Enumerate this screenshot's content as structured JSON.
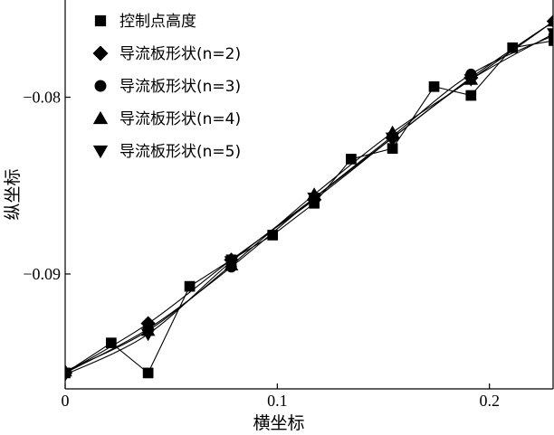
{
  "chart_data": {
    "type": "line",
    "title": "",
    "xlabel": "横坐标",
    "ylabel": "纵坐标",
    "xlim": [
      0,
      0.23
    ],
    "ylim": [
      -0.0965,
      -0.0745
    ],
    "x_ticks": [
      0,
      0.1,
      0.2
    ],
    "x_tick_labels": [
      "0",
      "0.1",
      "0.2"
    ],
    "y_ticks": [
      -0.09,
      -0.08
    ],
    "y_tick_labels": [
      "−0.09",
      "−0.08"
    ],
    "grid": false,
    "legend_position": "top-left",
    "series": [
      {
        "name": "控制点高度",
        "marker": "square",
        "x": [
          0,
          0.0217,
          0.0391,
          0.0587,
          0.0783,
          0.0978,
          0.1174,
          0.1348,
          0.1543,
          0.1739,
          0.1913,
          0.2109,
          0.2304
        ],
        "y": [
          -0.0956,
          -0.0939,
          -0.0956,
          -0.0907,
          -0.0892,
          -0.0878,
          -0.086,
          -0.0835,
          -0.0829,
          -0.0794,
          -0.0799,
          -0.0772,
          -0.0768
        ]
      },
      {
        "name": "导流板形状(n=2)",
        "marker": "diamond",
        "x": [
          0,
          0.0391,
          0.0783,
          0.1174,
          0.1543,
          0.1913,
          0.2304
        ],
        "y": [
          -0.0956,
          -0.0928,
          -0.0892,
          -0.0858,
          -0.0823,
          -0.0789,
          -0.0757
        ]
      },
      {
        "name": "导流板形状(n=3)",
        "marker": "circle",
        "x": [
          0,
          0.0391,
          0.0783,
          0.1174,
          0.1543,
          0.1913,
          0.2304
        ],
        "y": [
          -0.0956,
          -0.0931,
          -0.0896,
          -0.0857,
          -0.0822,
          -0.0787,
          -0.0765
        ]
      },
      {
        "name": "导流板形状(n=4)",
        "marker": "triangle-up",
        "x": [
          0,
          0.0391,
          0.0783,
          0.1174,
          0.1543,
          0.1913,
          0.2304
        ],
        "y": [
          -0.0955,
          -0.0932,
          -0.0895,
          -0.0855,
          -0.082,
          -0.079,
          -0.0757
        ]
      },
      {
        "name": "导流板形状(n=5)",
        "marker": "triangle-down",
        "x": [
          0,
          0.0391,
          0.0783,
          0.1174,
          0.1543,
          0.1913,
          0.2304
        ],
        "y": [
          -0.0957,
          -0.0934,
          -0.0893,
          -0.0857,
          -0.0823,
          -0.079,
          -0.0764
        ]
      }
    ]
  }
}
